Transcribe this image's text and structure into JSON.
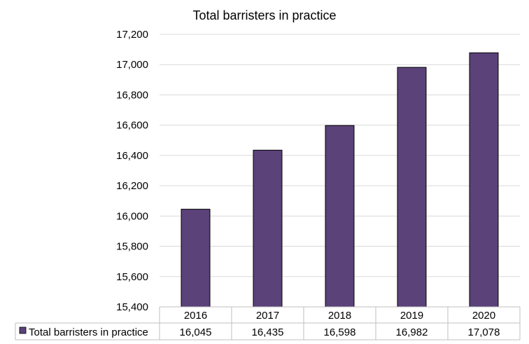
{
  "chart_data": {
    "type": "bar",
    "title": "Total barristers in practice",
    "categories": [
      "2016",
      "2017",
      "2018",
      "2019",
      "2020"
    ],
    "series": [
      {
        "name": "Total barristers in practice",
        "values": [
          16045,
          16435,
          16598,
          16982,
          17078
        ],
        "value_labels": [
          "16,045",
          "16,435",
          "16,598",
          "16,982",
          "17,078"
        ],
        "color": "#5b4279"
      }
    ],
    "ylim": [
      15400,
      17200
    ],
    "yticks": [
      15400,
      15600,
      15800,
      16000,
      16200,
      16400,
      16600,
      16800,
      17000,
      17200
    ],
    "ytick_labels": [
      "15,400",
      "15,600",
      "15,800",
      "16,000",
      "16,200",
      "16,400",
      "16,600",
      "16,800",
      "17,000",
      "17,200"
    ],
    "grid": true,
    "legend": "data-table-left",
    "xlabel": "",
    "ylabel": ""
  }
}
